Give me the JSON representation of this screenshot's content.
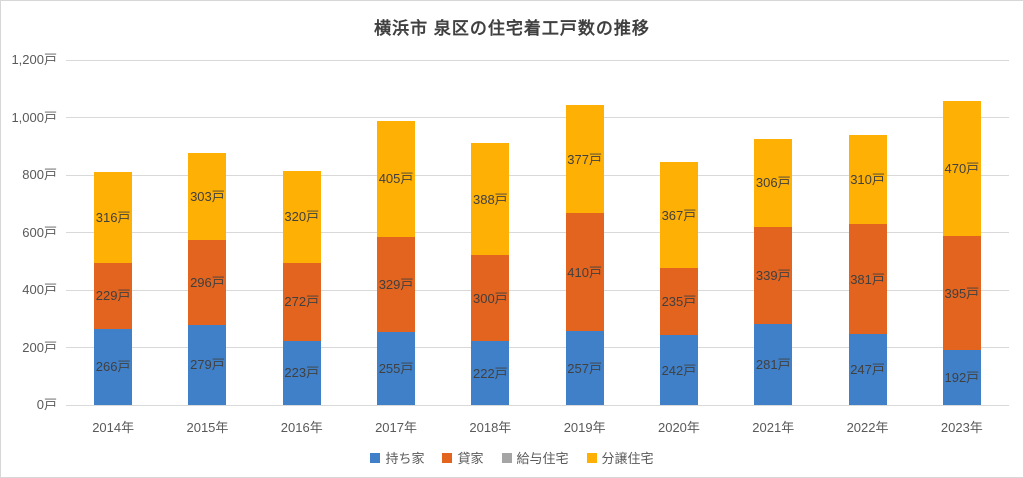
{
  "title": "横浜市 泉区の住宅着工戸数の推移",
  "chart_data": {
    "type": "bar",
    "stacked": true,
    "title": "横浜市 泉区の住宅着工戸数の推移",
    "categories": [
      "2014年",
      "2015年",
      "2016年",
      "2017年",
      "2018年",
      "2019年",
      "2020年",
      "2021年",
      "2022年",
      "2023年"
    ],
    "series": [
      {
        "name": "持ち家",
        "color": "#4080c8",
        "values": [
          266,
          279,
          223,
          255,
          222,
          257,
          242,
          281,
          247,
          192
        ]
      },
      {
        "name": "貸家",
        "color": "#e2641e",
        "values": [
          229,
          296,
          272,
          329,
          300,
          410,
          235,
          339,
          381,
          395
        ]
      },
      {
        "name": "給与住宅",
        "color": "#a5a5a5",
        "values": [
          0,
          0,
          0,
          0,
          0,
          0,
          0,
          0,
          0,
          0
        ]
      },
      {
        "name": "分譲住宅",
        "color": "#ffb005",
        "values": [
          316,
          303,
          320,
          405,
          388,
          377,
          367,
          306,
          310,
          470
        ]
      }
    ],
    "data_label_suffix": "戸",
    "ylim": [
      0,
      1200
    ],
    "yticks": [
      {
        "value": 0,
        "label": "0戸"
      },
      {
        "value": 200,
        "label": "200戸"
      },
      {
        "value": 400,
        "label": "400戸"
      },
      {
        "value": 600,
        "label": "600戸"
      },
      {
        "value": 800,
        "label": "800戸"
      },
      {
        "value": 1000,
        "label": "1,000戸"
      },
      {
        "value": 1200,
        "label": "1,200戸"
      }
    ],
    "grid": true,
    "legend_position": "bottom"
  }
}
